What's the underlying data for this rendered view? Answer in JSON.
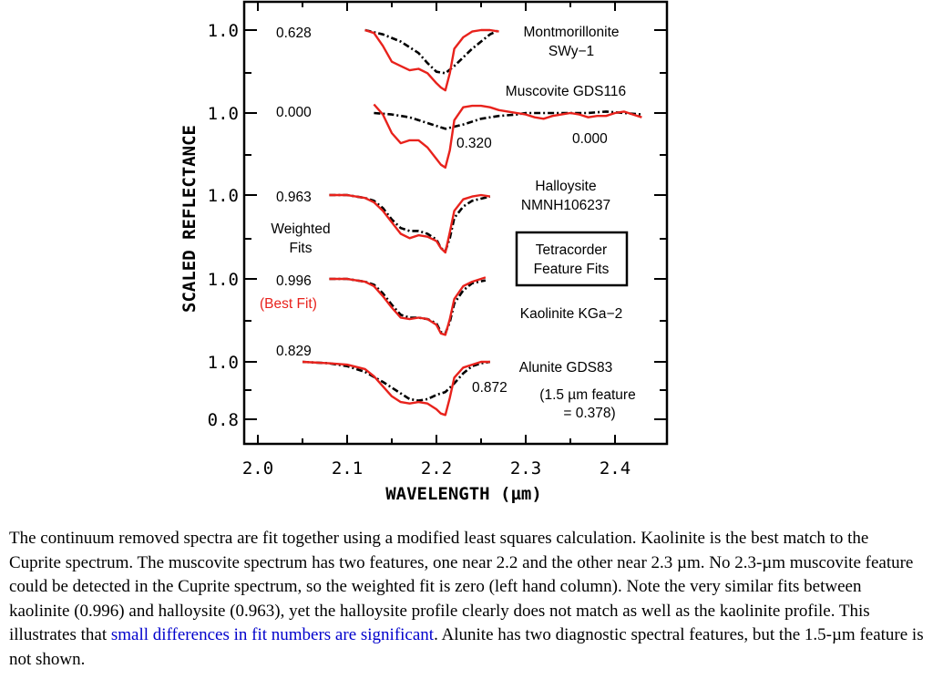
{
  "chart_data": {
    "type": "line",
    "xlabel": "WAVELENGTH (µm)",
    "ylabel": "SCALED REFLECTANCE",
    "xlim": [
      2.0,
      2.45
    ],
    "x_ticks": [
      "2.0",
      "2.1",
      "2.2",
      "2.3",
      "2.4"
    ],
    "y_ticks": [
      "1.0",
      "1.0",
      "1.0",
      "1.0",
      "1.0",
      "0.8"
    ],
    "grid": false,
    "colors": {
      "library": "#e8221c",
      "cuprite": "#000000",
      "best_fit_text": "#e8221c"
    },
    "panels": [
      {
        "name": "Montmorillonite",
        "label_lines": [
          "Montmorillonite",
          "SWy−1"
        ],
        "weighted_fit": "0.628",
        "library_x": [
          2.12,
          2.13,
          2.14,
          2.15,
          2.16,
          2.17,
          2.18,
          2.19,
          2.2,
          2.205,
          2.21,
          2.215,
          2.22,
          2.23,
          2.24,
          2.25,
          2.26,
          2.27
        ],
        "library_y": [
          1.0,
          0.99,
          0.945,
          0.89,
          0.875,
          0.86,
          0.865,
          0.85,
          0.815,
          0.8,
          0.79,
          0.85,
          0.935,
          0.975,
          0.995,
          1.0,
          1.0,
          0.995
        ],
        "cuprite_x": [
          2.12,
          2.14,
          2.16,
          2.18,
          2.19,
          2.2,
          2.21,
          2.22,
          2.24,
          2.26,
          2.27
        ],
        "cuprite_y": [
          1.0,
          0.985,
          0.96,
          0.92,
          0.885,
          0.855,
          0.85,
          0.875,
          0.935,
          0.985,
          1.0
        ]
      },
      {
        "name": "Muscovite GDS116",
        "label_lines": [
          "Muscovite GDS116"
        ],
        "weighted_fit": "0.000",
        "extra_labels": [
          "0.320",
          "0.000"
        ],
        "library_x": [
          2.13,
          2.14,
          2.15,
          2.16,
          2.17,
          2.18,
          2.19,
          2.2,
          2.205,
          2.21,
          2.215,
          2.22,
          2.23,
          2.24,
          2.25,
          2.26,
          2.27,
          2.28,
          2.29,
          2.3,
          2.31,
          2.32,
          2.33,
          2.34,
          2.35,
          2.36,
          2.37,
          2.38,
          2.39,
          2.4,
          2.41,
          2.42,
          2.43
        ],
        "library_y": [
          1.03,
          0.995,
          0.93,
          0.895,
          0.905,
          0.905,
          0.88,
          0.84,
          0.82,
          0.81,
          0.87,
          0.975,
          1.02,
          1.025,
          1.025,
          1.02,
          1.01,
          1.005,
          1.0,
          0.995,
          0.985,
          0.98,
          0.99,
          0.995,
          1.0,
          0.995,
          0.985,
          0.99,
          0.99,
          1.0,
          1.005,
          0.995,
          0.985
        ],
        "cuprite_x": [
          2.13,
          2.15,
          2.17,
          2.19,
          2.21,
          2.23,
          2.25,
          2.27,
          2.29,
          2.3,
          2.31,
          2.33,
          2.35,
          2.37,
          2.39,
          2.41,
          2.43
        ],
        "cuprite_y": [
          1.0,
          0.995,
          0.985,
          0.965,
          0.945,
          0.96,
          0.98,
          0.99,
          0.995,
          1.0,
          1.0,
          1.0,
          1.0,
          1.0,
          1.005,
          1.0,
          0.995
        ]
      },
      {
        "name": "Halloysite",
        "label_lines": [
          "Halloysite",
          "NMNH106237"
        ],
        "weighted_fit": "0.963",
        "library_x": [
          2.08,
          2.1,
          2.12,
          2.13,
          2.14,
          2.15,
          2.16,
          2.17,
          2.18,
          2.19,
          2.2,
          2.205,
          2.21,
          2.215,
          2.22,
          2.23,
          2.24,
          2.25,
          2.26
        ],
        "library_y": [
          1.0,
          1.0,
          0.99,
          0.975,
          0.945,
          0.905,
          0.865,
          0.85,
          0.86,
          0.855,
          0.84,
          0.815,
          0.8,
          0.87,
          0.945,
          0.985,
          0.995,
          1.0,
          0.995
        ],
        "cuprite_x": [
          2.08,
          2.1,
          2.12,
          2.13,
          2.14,
          2.15,
          2.16,
          2.17,
          2.18,
          2.19,
          2.2,
          2.205,
          2.21,
          2.215,
          2.22,
          2.23,
          2.24,
          2.26
        ],
        "cuprite_y": [
          1.0,
          1.0,
          0.99,
          0.98,
          0.955,
          0.915,
          0.885,
          0.875,
          0.875,
          0.865,
          0.845,
          0.815,
          0.805,
          0.85,
          0.92,
          0.96,
          0.98,
          0.995
        ]
      },
      {
        "name": "Kaolinite KGa−2",
        "label_lines": [
          "Kaolinite KGa−2"
        ],
        "weighted_fit": "0.996",
        "best_fit_label": "(Best Fit)",
        "library_x": [
          2.08,
          2.1,
          2.12,
          2.13,
          2.14,
          2.15,
          2.16,
          2.17,
          2.18,
          2.19,
          2.2,
          2.205,
          2.21,
          2.215,
          2.22,
          2.23,
          2.24,
          2.255
        ],
        "library_y": [
          1.0,
          1.0,
          0.99,
          0.975,
          0.94,
          0.9,
          0.865,
          0.86,
          0.865,
          0.86,
          0.84,
          0.81,
          0.805,
          0.86,
          0.93,
          0.975,
          0.99,
          1.005
        ],
        "cuprite_x": [
          2.08,
          2.1,
          2.12,
          2.13,
          2.14,
          2.15,
          2.16,
          2.17,
          2.18,
          2.19,
          2.2,
          2.205,
          2.21,
          2.215,
          2.22,
          2.23,
          2.24,
          2.255
        ],
        "cuprite_y": [
          1.0,
          1.0,
          0.99,
          0.98,
          0.95,
          0.91,
          0.875,
          0.865,
          0.865,
          0.86,
          0.845,
          0.815,
          0.81,
          0.85,
          0.915,
          0.96,
          0.985,
          0.995
        ]
      },
      {
        "name": "Alunite GDS83",
        "label_lines": [
          "Alunite GDS83"
        ],
        "weighted_fit": "0.829",
        "extra_labels": [
          "0.872"
        ],
        "note_lines": [
          "(1.5 µm feature",
          "= 0.378)"
        ],
        "library_x": [
          2.05,
          2.08,
          2.1,
          2.12,
          2.13,
          2.14,
          2.15,
          2.16,
          2.17,
          2.18,
          2.19,
          2.2,
          2.205,
          2.21,
          2.215,
          2.22,
          2.23,
          2.24,
          2.25,
          2.26
        ],
        "library_y": [
          1.0,
          0.995,
          0.99,
          0.975,
          0.95,
          0.915,
          0.88,
          0.86,
          0.855,
          0.86,
          0.855,
          0.835,
          0.82,
          0.815,
          0.875,
          0.945,
          0.98,
          0.99,
          1.0,
          1.0
        ],
        "cuprite_x": [
          2.05,
          2.08,
          2.1,
          2.12,
          2.14,
          2.16,
          2.17,
          2.18,
          2.19,
          2.2,
          2.21,
          2.22,
          2.23,
          2.24,
          2.25,
          2.26
        ],
        "cuprite_y": [
          1.0,
          0.995,
          0.985,
          0.965,
          0.93,
          0.89,
          0.87,
          0.865,
          0.87,
          0.885,
          0.895,
          0.925,
          0.96,
          0.985,
          0.995,
          1.0
        ]
      }
    ],
    "annotations": {
      "weighted_fits_lines": [
        "Weighted",
        "Fits"
      ],
      "tetracorder_lines": [
        "Tetracorder",
        "Feature Fits"
      ]
    }
  },
  "caption": {
    "text_before": "The continuum removed spectra are fit together using a modified least squares calculation. Kaolinite is the best match to the Cuprite spectrum. The muscovite spectrum has two features, one near 2.2 and the other near 2.3 µm. No 2.3-µm muscovite feature could be detected in the Cuprite spectrum, so the weighted fit is zero (left hand column). Note the very similar fits between kaolinite (0.996) and halloysite (0.963), yet the halloysite profile clearly does not match as well as the kaolinite profile. This illustrates that ",
    "link_text": "small differences in fit numbers are significant",
    "text_after": ". Alunite has two diagnostic spectral features, but the 1.5-µm feature is not shown."
  }
}
